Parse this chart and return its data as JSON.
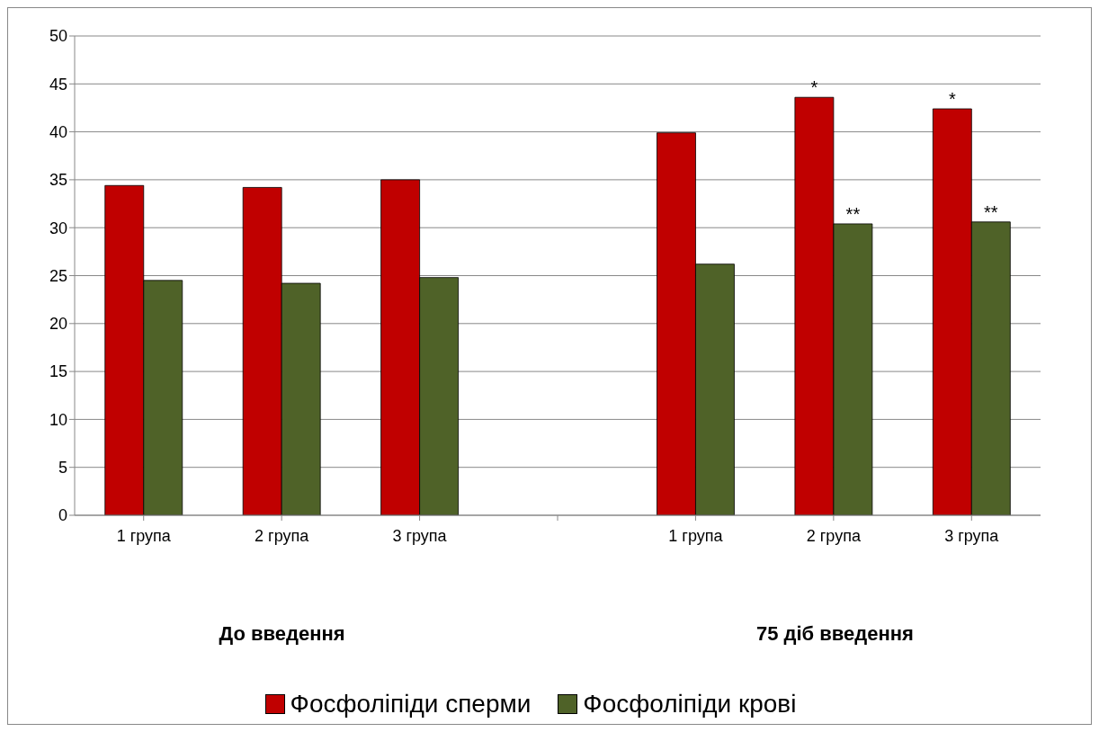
{
  "chart_data": {
    "type": "bar",
    "categories": [
      "1 група",
      "2 група",
      "3 група",
      null,
      "1 група",
      "2 група",
      "3 група"
    ],
    "series": [
      {
        "name": "Фосфоліпіди сперми",
        "color": "#c00000",
        "values": [
          34.4,
          34.2,
          35.0,
          null,
          39.9,
          43.6,
          42.4
        ],
        "value_labels": [
          null,
          null,
          null,
          null,
          null,
          "*",
          "*"
        ]
      },
      {
        "name": "Фосфоліпіди крові",
        "color": "#4f6228",
        "values": [
          24.5,
          24.2,
          24.8,
          null,
          26.2,
          30.4,
          30.6
        ],
        "value_labels": [
          null,
          null,
          null,
          null,
          null,
          "**",
          "**"
        ]
      }
    ],
    "annotations": [
      "До введення",
      "75 діб введення"
    ],
    "ylim": [
      0,
      50
    ],
    "yticks": [
      0,
      5,
      10,
      15,
      20,
      25,
      30,
      35,
      40,
      45,
      50
    ],
    "grid": "y",
    "legend": "bottom"
  }
}
